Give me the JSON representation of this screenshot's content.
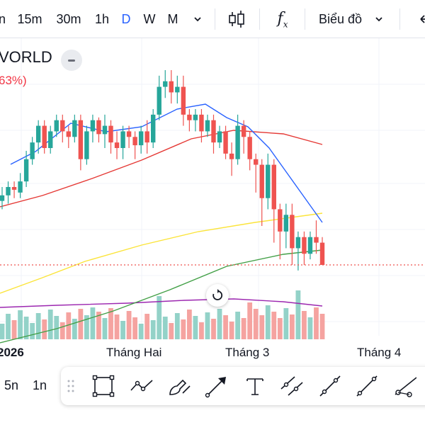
{
  "toolbar": {
    "intervals": [
      "n",
      "15m",
      "30m",
      "1h",
      "D",
      "W",
      "M"
    ],
    "active_interval": "D",
    "chart_type_icon": "candles-icon",
    "indicators_icon": "fx-icon",
    "chart_menu_label": "Biểu đồ",
    "undo_icon": "arrow-left-icon"
  },
  "legend": {
    "symbol": "VORLD",
    "change": "63%)"
  },
  "colors": {
    "up": "#26a69a",
    "down": "#ef5350",
    "ma_blue": "#2962ff",
    "ma_red": "#e53935",
    "ma_yellow": "#fbe43a",
    "ma_green": "#43a047",
    "volume_ma": "#9c27b0"
  },
  "x_axis": {
    "labels": [
      "2026",
      "Tháng Hai",
      "Tháng 3",
      "Tháng 4"
    ]
  },
  "bottom": {
    "ranges": [
      "5n",
      "1n"
    ],
    "drawing_tools": [
      "rectangle-icon",
      "path-icon",
      "brush-icon",
      "arrow-icon",
      "text-icon",
      "parallel-channel-icon",
      "trend-line-icon",
      "ray-icon",
      "measure-icon"
    ]
  },
  "chart_data": {
    "type": "candlestick",
    "note_series": [
      "candles",
      "volume",
      "MA fast (blue)",
      "MA (red)",
      "MA (yellow)",
      "MA slow (green)"
    ],
    "candles_relative": [
      [
        0.45,
        0.47,
        0.42,
        0.5
      ],
      [
        0.47,
        0.5,
        0.44,
        0.52
      ],
      [
        0.5,
        0.49,
        0.46,
        0.52
      ],
      [
        0.48,
        0.52,
        0.46,
        0.55
      ],
      [
        0.52,
        0.6,
        0.5,
        0.63
      ],
      [
        0.6,
        0.66,
        0.58,
        0.68
      ],
      [
        0.66,
        0.72,
        0.62,
        0.74
      ],
      [
        0.72,
        0.64,
        0.62,
        0.74
      ],
      [
        0.64,
        0.7,
        0.62,
        0.72
      ],
      [
        0.7,
        0.74,
        0.68,
        0.76
      ],
      [
        0.74,
        0.7,
        0.66,
        0.76
      ],
      [
        0.7,
        0.68,
        0.64,
        0.72
      ],
      [
        0.68,
        0.74,
        0.66,
        0.76
      ],
      [
        0.74,
        0.6,
        0.56,
        0.76
      ],
      [
        0.6,
        0.7,
        0.58,
        0.72
      ],
      [
        0.7,
        0.74,
        0.66,
        0.76
      ],
      [
        0.74,
        0.69,
        0.66,
        0.75
      ],
      [
        0.69,
        0.72,
        0.64,
        0.76
      ],
      [
        0.72,
        0.66,
        0.62,
        0.74
      ],
      [
        0.66,
        0.64,
        0.6,
        0.7
      ],
      [
        0.64,
        0.7,
        0.6,
        0.72
      ],
      [
        0.7,
        0.68,
        0.64,
        0.72
      ],
      [
        0.68,
        0.65,
        0.6,
        0.7
      ],
      [
        0.65,
        0.7,
        0.62,
        0.72
      ],
      [
        0.7,
        0.66,
        0.62,
        0.74
      ],
      [
        0.66,
        0.76,
        0.64,
        0.78
      ],
      [
        0.76,
        0.86,
        0.74,
        0.9
      ],
      [
        0.86,
        0.88,
        0.82,
        0.92
      ],
      [
        0.88,
        0.84,
        0.8,
        0.92
      ],
      [
        0.84,
        0.86,
        0.8,
        0.9
      ],
      [
        0.86,
        0.76,
        0.72,
        0.9
      ],
      [
        0.76,
        0.74,
        0.7,
        0.78
      ],
      [
        0.74,
        0.76,
        0.7,
        0.78
      ],
      [
        0.76,
        0.7,
        0.66,
        0.78
      ],
      [
        0.7,
        0.74,
        0.68,
        0.76
      ],
      [
        0.74,
        0.66,
        0.62,
        0.76
      ],
      [
        0.66,
        0.7,
        0.64,
        0.72
      ],
      [
        0.7,
        0.62,
        0.6,
        0.72
      ],
      [
        0.62,
        0.6,
        0.54,
        0.66
      ],
      [
        0.6,
        0.72,
        0.58,
        0.76
      ],
      [
        0.72,
        0.68,
        0.62,
        0.74
      ],
      [
        0.68,
        0.6,
        0.56,
        0.7
      ],
      [
        0.6,
        0.58,
        0.48,
        0.62
      ],
      [
        0.58,
        0.46,
        0.36,
        0.6
      ],
      [
        0.46,
        0.58,
        0.42,
        0.62
      ],
      [
        0.58,
        0.42,
        0.3,
        0.6
      ],
      [
        0.42,
        0.34,
        0.24,
        0.44
      ],
      [
        0.34,
        0.4,
        0.28,
        0.44
      ],
      [
        0.4,
        0.28,
        0.22,
        0.44
      ],
      [
        0.28,
        0.32,
        0.2,
        0.34
      ],
      [
        0.32,
        0.26,
        0.22,
        0.34
      ],
      [
        0.26,
        0.32,
        0.24,
        0.34
      ],
      [
        0.32,
        0.3,
        0.26,
        0.38
      ],
      [
        0.3,
        0.22,
        0.22,
        0.32
      ]
    ]
  }
}
